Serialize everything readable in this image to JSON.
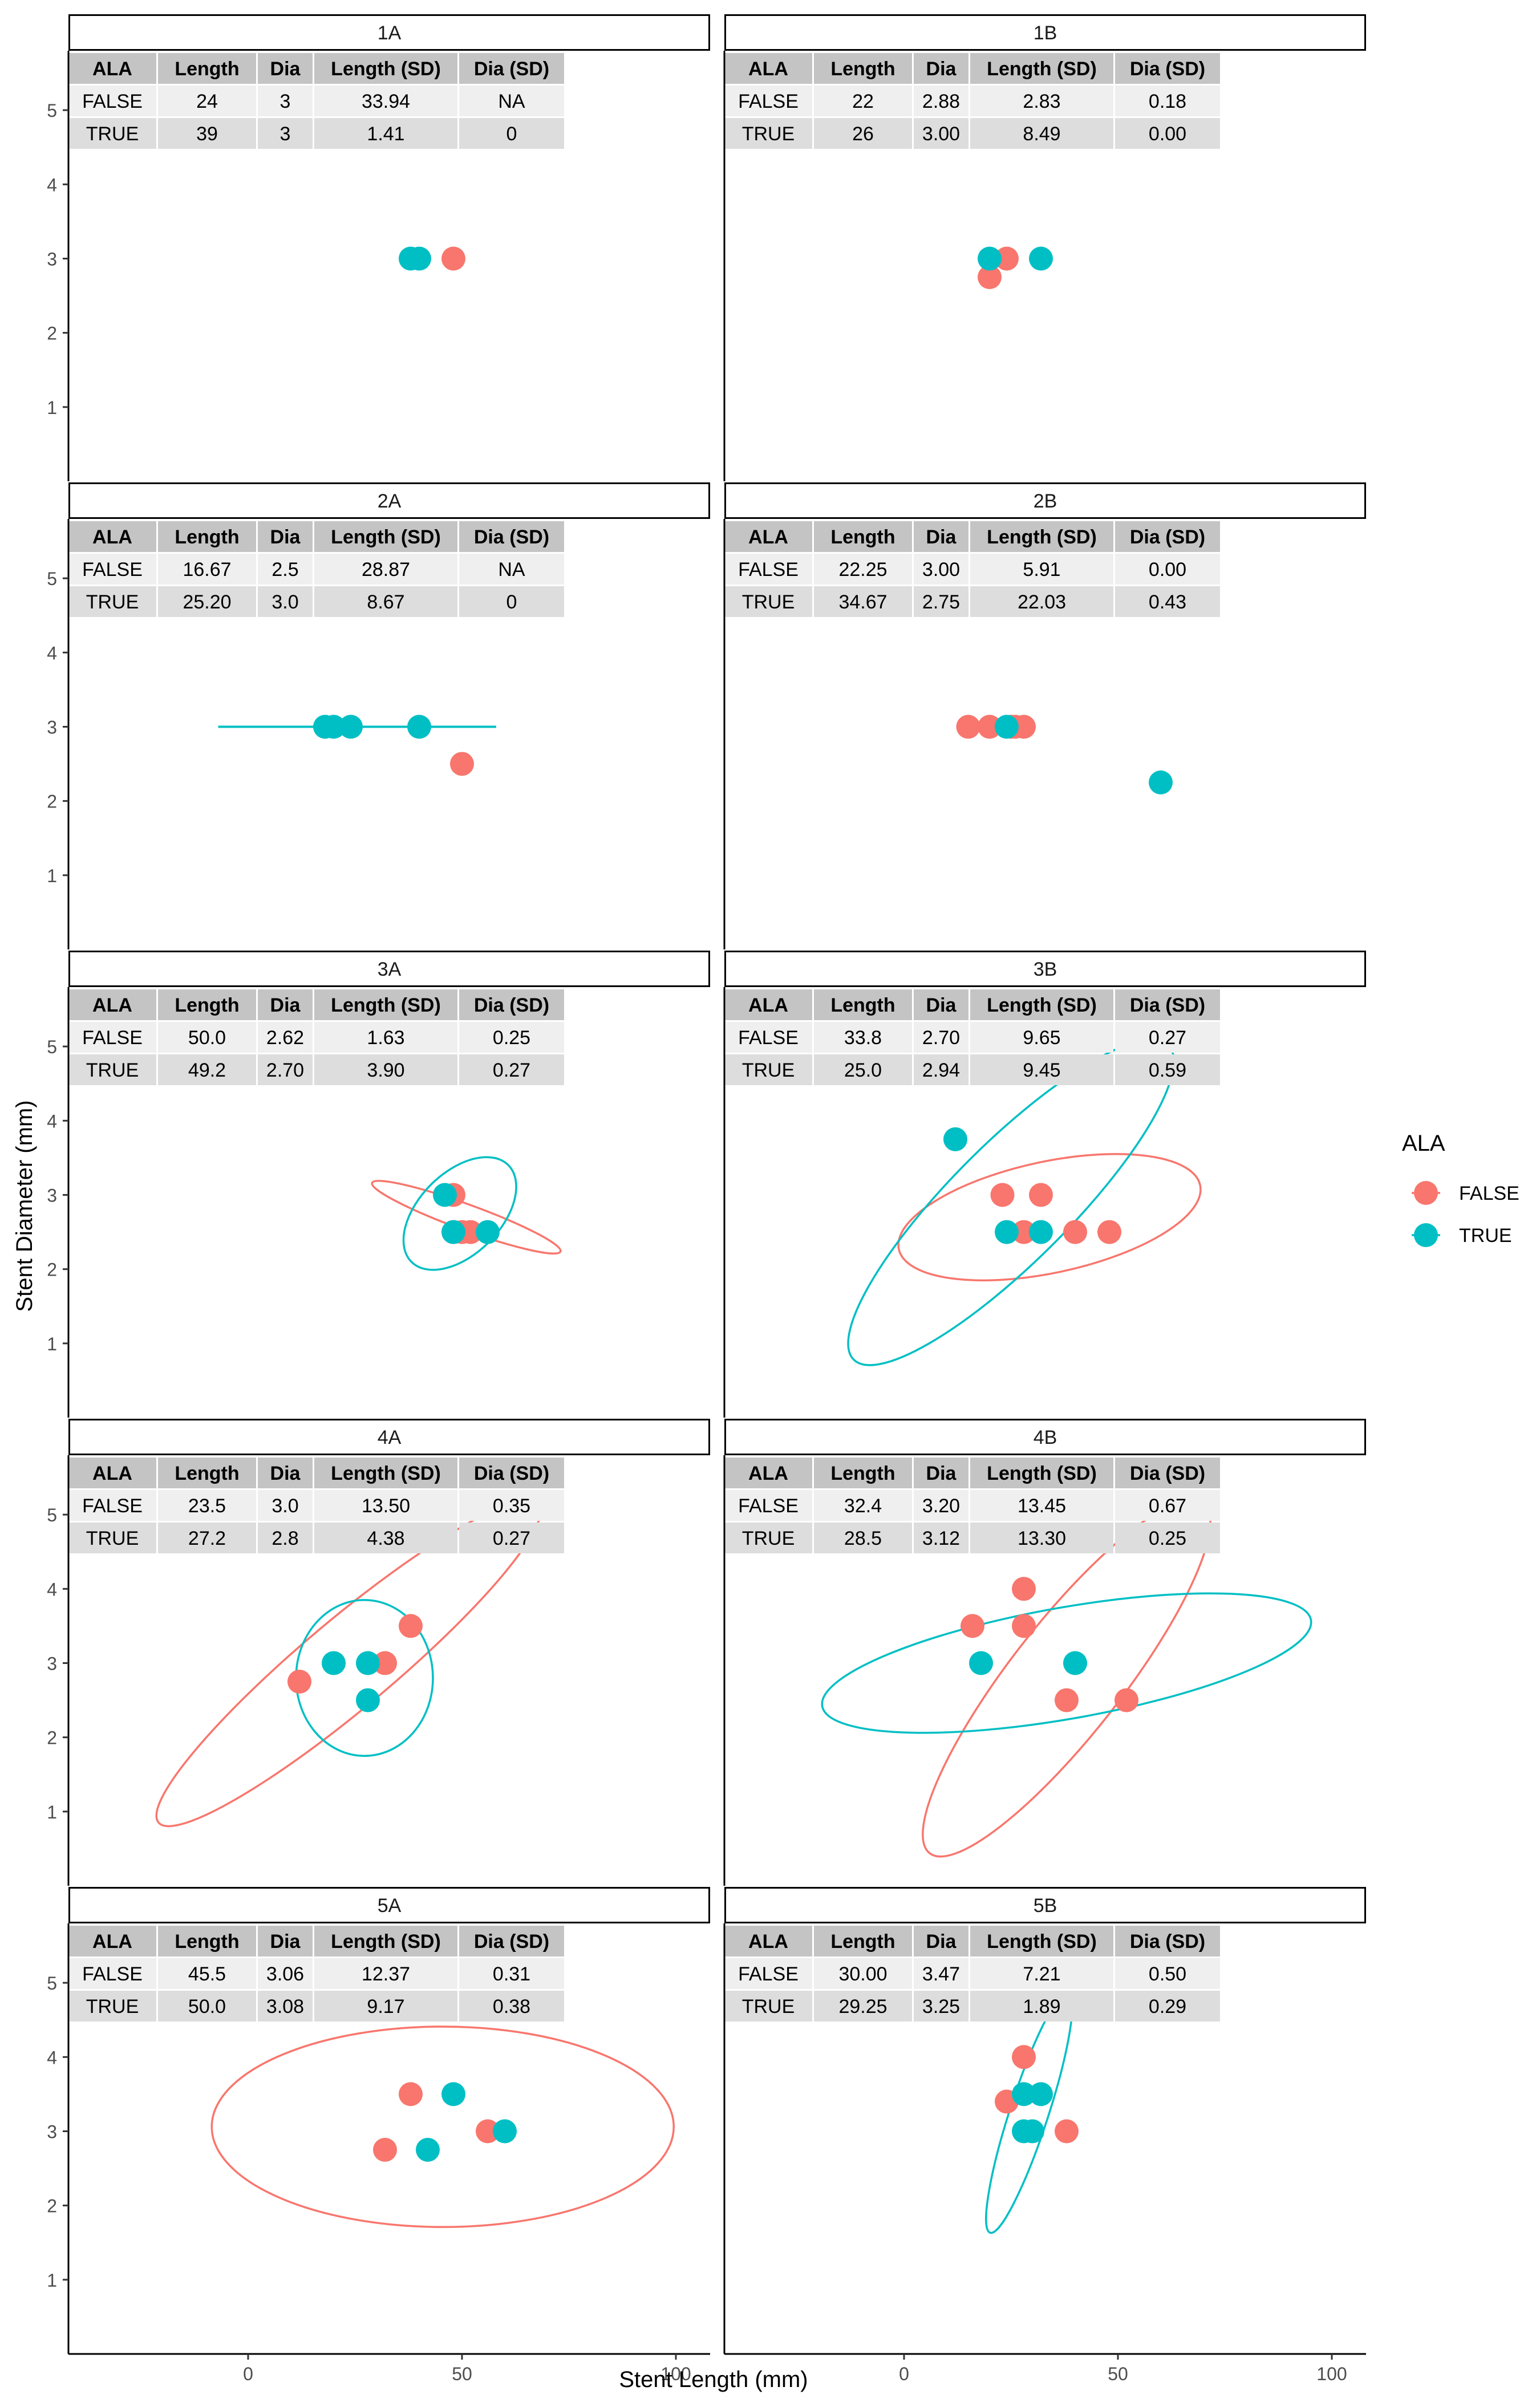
{
  "chart_data": {
    "type": "scatter",
    "xlabel": "Stent Length (mm)",
    "ylabel": "Stent Diameter (mm)",
    "xlim": [
      -42,
      108
    ],
    "ylim": [
      0,
      5.8
    ],
    "x_ticks": [
      0,
      50,
      100
    ],
    "y_ticks": [
      1,
      2,
      3,
      4,
      5
    ],
    "grid": false,
    "legend": {
      "title": "ALA",
      "position": "right",
      "entries": [
        {
          "label": "FALSE",
          "color": "#F8766D"
        },
        {
          "label": "TRUE",
          "color": "#00BFC4"
        }
      ]
    },
    "table_headers": [
      "ALA",
      "Length",
      "Dia",
      "Length (SD)",
      "Dia (SD)"
    ],
    "panels": [
      {
        "title": "1A",
        "table": [
          [
            "FALSE",
            "24",
            "3",
            "33.94",
            "NA"
          ],
          [
            "TRUE",
            "39",
            "3",
            "1.41",
            "0"
          ]
        ],
        "series": [
          {
            "name": "FALSE",
            "points": [
              [
                48,
                3
              ]
            ],
            "ellipse": null
          },
          {
            "name": "TRUE",
            "points": [
              [
                38,
                3
              ],
              [
                40,
                3
              ]
            ],
            "ellipse": null
          }
        ],
        "hlines": []
      },
      {
        "title": "1B",
        "table": [
          [
            "FALSE",
            "22",
            "2.88",
            "2.83",
            "0.18"
          ],
          [
            "TRUE",
            "26",
            "3.00",
            "8.49",
            "0.00"
          ]
        ],
        "series": [
          {
            "name": "FALSE",
            "points": [
              [
                20,
                2.75
              ],
              [
                24,
                3
              ]
            ],
            "ellipse": null
          },
          {
            "name": "TRUE",
            "points": [
              [
                20,
                3
              ],
              [
                32,
                3
              ]
            ],
            "ellipse": null
          }
        ],
        "hlines": []
      },
      {
        "title": "2A",
        "table": [
          [
            "FALSE",
            "16.67",
            "2.5",
            "28.87",
            "NA"
          ],
          [
            "TRUE",
            "25.20",
            "3.0",
            "8.67",
            "0"
          ]
        ],
        "series": [
          {
            "name": "FALSE",
            "points": [
              [
                50,
                2.5
              ]
            ],
            "ellipse": null
          },
          {
            "name": "TRUE",
            "points": [
              [
                18,
                3
              ],
              [
                20,
                3
              ],
              [
                24,
                3
              ],
              [
                40,
                3
              ]
            ],
            "ellipse": null
          }
        ],
        "hlines": [
          {
            "name": "TRUE",
            "x1": -7,
            "x2": 58,
            "y": 3
          }
        ]
      },
      {
        "title": "2B",
        "table": [
          [
            "FALSE",
            "22.25",
            "3.00",
            "5.91",
            "0.00"
          ],
          [
            "TRUE",
            "34.67",
            "2.75",
            "22.03",
            "0.43"
          ]
        ],
        "series": [
          {
            "name": "FALSE",
            "points": [
              [
                15,
                3
              ],
              [
                20,
                3
              ],
              [
                25,
                3
              ],
              [
                26,
                3
              ],
              [
                28,
                3
              ]
            ],
            "ellipse": null
          },
          {
            "name": "TRUE",
            "points": [
              [
                24,
                3
              ],
              [
                60,
                2.25
              ]
            ],
            "ellipse": null
          }
        ],
        "hlines": []
      },
      {
        "title": "3A",
        "table": [
          [
            "FALSE",
            "50.0",
            "2.62",
            "1.63",
            "0.25"
          ],
          [
            "TRUE",
            "49.2",
            "2.70",
            "3.90",
            "0.27"
          ]
        ],
        "series": [
          {
            "name": "FALSE",
            "points": [
              [
                48,
                3
              ],
              [
                48,
                2.5
              ],
              [
                50,
                2.5
              ],
              [
                52,
                2.5
              ]
            ],
            "ellipse": {
              "cx": 51,
              "cy": 2.7,
              "rx": 3,
              "ry": 1.35,
              "angle": -70
            }
          },
          {
            "name": "TRUE",
            "points": [
              [
                46,
                3
              ],
              [
                48,
                2.5
              ],
              [
                56,
                2.5
              ]
            ],
            "ellipse": {
              "cx": 49.5,
              "cy": 2.75,
              "rx": 16,
              "ry": 0.55,
              "angle": -45
            }
          }
        ],
        "hlines": []
      },
      {
        "title": "3B",
        "table": [
          [
            "FALSE",
            "33.8",
            "2.70",
            "9.65",
            "0.27"
          ],
          [
            "TRUE",
            "25.0",
            "2.94",
            "9.45",
            "0.59"
          ]
        ],
        "series": [
          {
            "name": "FALSE",
            "points": [
              [
                23,
                3
              ],
              [
                32,
                3
              ],
              [
                28,
                2.5
              ],
              [
                40,
                2.5
              ],
              [
                48,
                2.5
              ]
            ],
            "ellipse": {
              "cx": 34,
              "cy": 2.7,
              "rx": 36,
              "ry": 0.75,
              "angle": -12
            }
          },
          {
            "name": "TRUE",
            "points": [
              [
                12,
                3.75
              ],
              [
                24,
                2.5
              ],
              [
                32,
                2.5
              ]
            ],
            "ellipse": {
              "cx": 25,
              "cy": 2.9,
              "rx": 52,
              "ry": 0.8,
              "angle": -45
            }
          }
        ],
        "hlines": []
      },
      {
        "title": "4A",
        "table": [
          [
            "FALSE",
            "23.5",
            "3.0",
            "13.50",
            "0.35"
          ],
          [
            "TRUE",
            "27.2",
            "2.8",
            "4.38",
            "0.27"
          ]
        ],
        "series": [
          {
            "name": "FALSE",
            "points": [
              [
                12,
                2.75
              ],
              [
                32,
                3
              ],
              [
                38,
                3.5
              ]
            ],
            "ellipse": {
              "cx": 23.5,
              "cy": 3,
              "rx": 58,
              "ry": 0.6,
              "angle": -40
            }
          },
          {
            "name": "TRUE",
            "points": [
              [
                20,
                3
              ],
              [
                28,
                3
              ],
              [
                28,
                2.5
              ]
            ],
            "ellipse": {
              "cx": 27.2,
              "cy": 2.8,
              "rx": 16,
              "ry": 1.05,
              "angle": 0
            }
          }
        ],
        "hlines": []
      },
      {
        "title": "4B",
        "table": [
          [
            "FALSE",
            "32.4",
            "3.20",
            "13.45",
            "0.67"
          ],
          [
            "TRUE",
            "28.5",
            "3.12",
            "13.30",
            "0.25"
          ]
        ],
        "series": [
          {
            "name": "FALSE",
            "points": [
              [
                16,
                3.5
              ],
              [
                28,
                4
              ],
              [
                28,
                3.5
              ],
              [
                38,
                2.5
              ],
              [
                52,
                2.5
              ]
            ],
            "ellipse": {
              "cx": 38,
              "cy": 2.8,
              "rx": 52,
              "ry": 0.75,
              "angle": -52
            }
          },
          {
            "name": "TRUE",
            "points": [
              [
                18,
                3
              ],
              [
                40,
                3
              ]
            ],
            "ellipse": {
              "cx": 38,
              "cy": 3,
              "rx": 58,
              "ry": 0.75,
              "angle": -10
            }
          }
        ],
        "hlines": []
      },
      {
        "title": "5A",
        "table": [
          [
            "FALSE",
            "45.5",
            "3.06",
            "12.37",
            "0.31"
          ],
          [
            "TRUE",
            "50.0",
            "3.08",
            "9.17",
            "0.38"
          ]
        ],
        "series": [
          {
            "name": "FALSE",
            "points": [
              [
                38,
                3.5
              ],
              [
                32,
                2.75
              ],
              [
                56,
                3
              ]
            ],
            "ellipse": {
              "cx": 45.5,
              "cy": 3.06,
              "rx": 54,
              "ry": 1.35,
              "angle": 0
            }
          },
          {
            "name": "TRUE",
            "points": [
              [
                48,
                3.5
              ],
              [
                42,
                2.75
              ],
              [
                60,
                3
              ]
            ],
            "ellipse": null
          }
        ],
        "hlines": []
      },
      {
        "title": "5B",
        "table": [
          [
            "FALSE",
            "30.00",
            "3.47",
            "7.21",
            "0.50"
          ],
          [
            "TRUE",
            "29.25",
            "3.25",
            "1.89",
            "0.29"
          ]
        ],
        "series": [
          {
            "name": "FALSE",
            "points": [
              [
                28,
                4
              ],
              [
                24,
                3.4
              ],
              [
                38,
                3
              ]
            ],
            "ellipse": null
          },
          {
            "name": "TRUE",
            "points": [
              [
                28,
                3.5
              ],
              [
                32,
                3.5
              ],
              [
                28,
                3
              ],
              [
                30,
                3
              ]
            ],
            "ellipse": {
              "cx": 29.25,
              "cy": 3.25,
              "rx": 4.5,
              "ry": 1.7,
              "angle": 18
            }
          }
        ],
        "hlines": []
      }
    ]
  }
}
